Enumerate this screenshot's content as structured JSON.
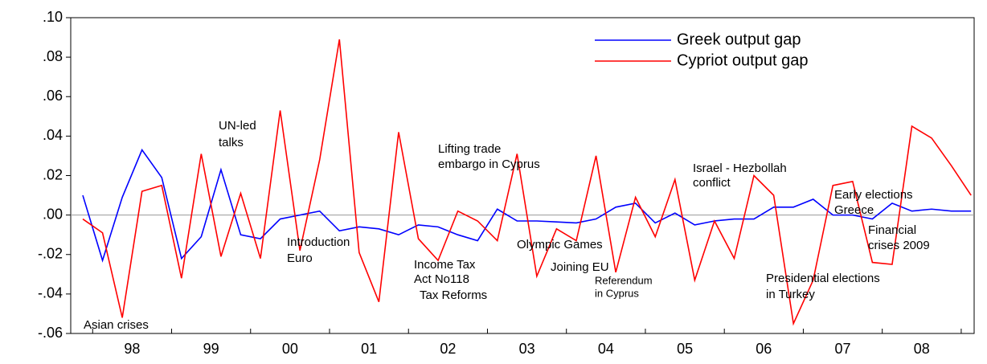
{
  "chart_data": {
    "type": "line",
    "categories": [
      null,
      null,
      null,
      null,
      null,
      null,
      null,
      null,
      null,
      null,
      null,
      null,
      null,
      null,
      null,
      null,
      null,
      null,
      null,
      null,
      null,
      null,
      null,
      null,
      null,
      null,
      null,
      null,
      null,
      null,
      null,
      null,
      null,
      null,
      null,
      null,
      null,
      null,
      null,
      null,
      null,
      null,
      null,
      null,
      null,
      null
    ],
    "year_labels": [
      "98",
      "99",
      "00",
      "01",
      "02",
      "03",
      "04",
      "05",
      "06",
      "07",
      "08"
    ],
    "series": [
      {
        "name": "Greek output gap",
        "color": "#0000ff",
        "values": [
          0.01,
          -0.023,
          0.009,
          0.033,
          0.019,
          -0.022,
          -0.011,
          0.023,
          -0.01,
          -0.012,
          -0.002,
          0.0,
          0.002,
          -0.008,
          -0.006,
          -0.007,
          -0.01,
          -0.005,
          -0.006,
          -0.01,
          -0.013,
          0.003,
          -0.003,
          -0.003,
          -0.0035,
          -0.004,
          -0.002,
          0.004,
          0.006,
          -0.004,
          0.001,
          -0.005,
          -0.003,
          -0.002,
          -0.002,
          0.004,
          0.004,
          0.008,
          0.0,
          0.0,
          -0.002,
          0.006,
          0.002,
          0.003,
          0.002,
          0.002
        ]
      },
      {
        "name": "Cypriot output gap",
        "color": "#ff0000",
        "values": [
          -0.002,
          -0.009,
          -0.052,
          0.012,
          0.015,
          -0.032,
          0.031,
          -0.021,
          0.011,
          -0.022,
          0.053,
          -0.018,
          0.028,
          0.089,
          -0.019,
          -0.044,
          0.042,
          -0.012,
          -0.023,
          0.002,
          -0.003,
          -0.013,
          0.031,
          -0.031,
          -0.007,
          -0.013,
          0.03,
          -0.029,
          0.009,
          -0.011,
          0.018,
          -0.033,
          -0.003,
          -0.022,
          0.02,
          0.01,
          -0.055,
          -0.033,
          0.015,
          0.017,
          -0.024,
          -0.025,
          0.045,
          0.039,
          0.025,
          0.01
        ]
      }
    ],
    "ylim": [
      -0.06,
      0.1
    ],
    "yticks": [
      {
        "value": -0.06,
        "label": "-.06"
      },
      {
        "value": -0.04,
        "label": "-.04"
      },
      {
        "value": -0.02,
        "label": "-.02"
      },
      {
        "value": 0,
        "label": ".00"
      },
      {
        "value": 0.02,
        "label": ".02"
      },
      {
        "value": 0.04,
        "label": ".04"
      },
      {
        "value": 0.06,
        "label": ".06"
      },
      {
        "value": 0.08,
        "label": ".08"
      },
      {
        "value": 0.1,
        "label": ".10"
      }
    ],
    "legend": "upper right",
    "annotations": [
      "Asian crises",
      "UN-led",
      "talks",
      "Introduction",
      "Euro",
      "Lifting trade",
      "embargo in Cyprus",
      "Income Tax",
      "Act No118",
      "Tax Reforms",
      "Olympic Games",
      "Joining EU",
      "Referendum",
      "in Cyprus",
      "Israel - Hezbollah",
      "conflict",
      "Early elections",
      "Greece",
      "Financial",
      "crises 2009",
      "Presidential elections",
      "in Turkey"
    ]
  }
}
